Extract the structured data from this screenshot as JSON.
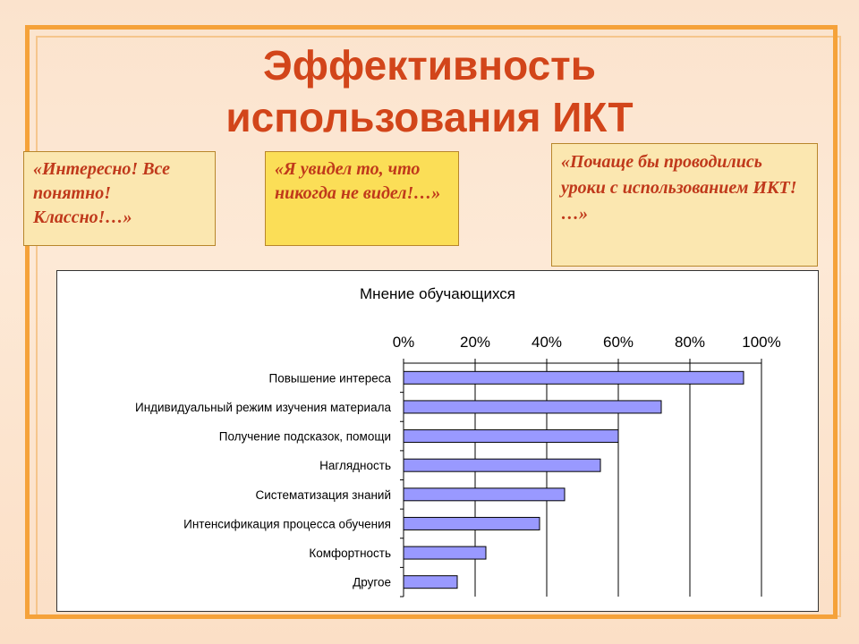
{
  "slide": {
    "title_line1": "Эффективность",
    "title_line2": "использования ИКТ"
  },
  "quotes": {
    "q1": "«Интересно! Все понятно! Классно!…»",
    "q2": "«Я увидел то, что никогда не видел!…»",
    "q3": "«Почаще бы проводились уроки с использованием ИКТ! …»"
  },
  "colors": {
    "bar_fill": "#9999ff",
    "title": "#d2451a",
    "frame": "#f5a23a"
  },
  "chart_data": {
    "type": "bar",
    "orientation": "horizontal",
    "title": "Мнение обучающихся",
    "categories": [
      "Повышение интереса",
      "Индивидуальный режим изучения материала",
      "Получение подсказок, помощи",
      "Наглядность",
      "Систематизация знаний",
      "Интенсификация процесса обучения",
      "Комфортность",
      "Другое"
    ],
    "values": [
      95,
      72,
      60,
      55,
      45,
      38,
      23,
      15
    ],
    "xlim": [
      0,
      100
    ],
    "ticks": [
      0,
      20,
      40,
      60,
      80,
      100
    ],
    "tick_labels": [
      "0%",
      "20%",
      "40%",
      "60%",
      "80%",
      "100%"
    ],
    "axis_position": "top",
    "grid": true,
    "legend": "none"
  }
}
